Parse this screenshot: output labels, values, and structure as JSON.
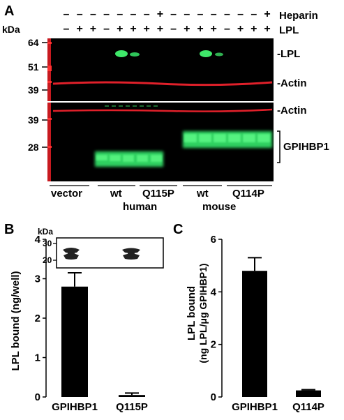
{
  "panel_a": {
    "label": "A",
    "kda_label": "kDa",
    "row_labels": {
      "heparin": "Heparin",
      "lpl": "LPL"
    },
    "heparin_marks": [
      "–",
      "–",
      "–",
      "–",
      "–",
      "–",
      "–",
      "+",
      "–",
      "–",
      "–",
      "–",
      "–",
      "–",
      "–",
      "+"
    ],
    "lpl_marks": [
      "–",
      "+",
      "+",
      "–",
      "+",
      "+",
      "+",
      "+",
      "–",
      "+",
      "+",
      "+",
      "–",
      "+",
      "+",
      "+"
    ],
    "marker_top": [
      "64",
      "51",
      "39"
    ],
    "marker_bottom": [
      "39",
      "28"
    ],
    "band_labels_top": {
      "lpl": "-LPL",
      "actin": "-Actin"
    },
    "band_labels_bottom": {
      "actin": "-Actin",
      "gpihbp1": "GPIHBP1"
    },
    "lane_groups": [
      "vector",
      "wt",
      "Q115P",
      "wt",
      "Q114P"
    ],
    "species": [
      "human",
      "mouse"
    ],
    "colors": {
      "blot_bg": "#000000",
      "green": "#3fe86a",
      "red": "#e0202a"
    }
  },
  "panel_b": {
    "label": "B",
    "inset_kda": "kDa",
    "inset_ticks": [
      "30",
      "20"
    ],
    "chart_data": {
      "type": "bar",
      "categories": [
        "GPIHBP1",
        "Q115P"
      ],
      "values": [
        2.8,
        0.05
      ],
      "errors": [
        0.35,
        0.05
      ],
      "ylabel": "LPL bound (ng/well)",
      "ylim": [
        0,
        4
      ],
      "yticks": [
        "0",
        "1",
        "2",
        "3",
        "4"
      ]
    }
  },
  "panel_c": {
    "label": "C",
    "chart_data": {
      "type": "bar",
      "categories": [
        "GPIHBP1",
        "Q114P"
      ],
      "values": [
        4.8,
        0.25
      ],
      "errors": [
        0.5,
        0.03
      ],
      "ylabel_line1": "LPL bound",
      "ylabel_line2": "(ng LPL/μg GPIHBP1)",
      "ylim": [
        0,
        6
      ],
      "yticks": [
        "0",
        "2",
        "4",
        "6"
      ]
    }
  }
}
